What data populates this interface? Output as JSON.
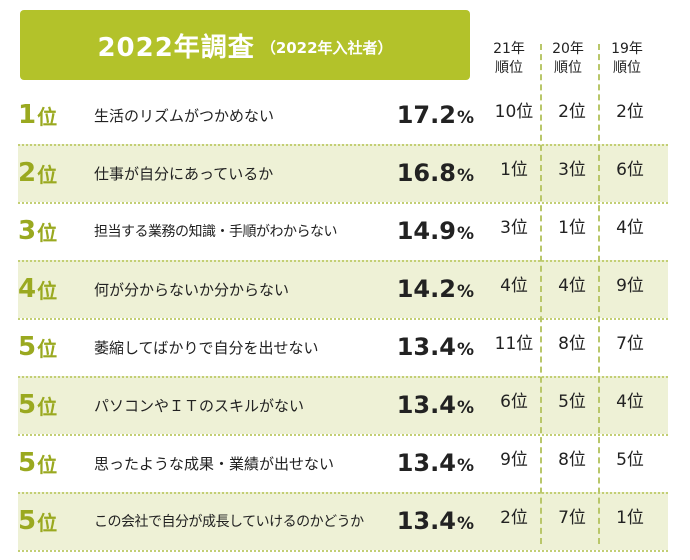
{
  "header": {
    "title": "2022年調査",
    "subtitle": "（2022年入社者）"
  },
  "columns": [
    {
      "line1": "21年",
      "line2": "順位"
    },
    {
      "line1": "20年",
      "line2": "順位"
    },
    {
      "line1": "19年",
      "line2": "順位"
    }
  ],
  "rank_unit": "位",
  "percent_sign": "%",
  "rows": [
    {
      "rank": "1",
      "reason": "生活のリズムがつかめない",
      "percent": "17.2",
      "r21": "10位",
      "r20": "2位",
      "r19": "2位"
    },
    {
      "rank": "2",
      "reason": "仕事が自分にあっているか",
      "percent": "16.8",
      "r21": "1位",
      "r20": "3位",
      "r19": "6位"
    },
    {
      "rank": "3",
      "reason": "担当する業務の知識・手順がわからない",
      "percent": "14.9",
      "r21": "3位",
      "r20": "1位",
      "r19": "4位"
    },
    {
      "rank": "4",
      "reason": "何が分からないか分からない",
      "percent": "14.2",
      "r21": "4位",
      "r20": "4位",
      "r19": "9位"
    },
    {
      "rank": "5",
      "reason": "萎縮してばかりで自分を出せない",
      "percent": "13.4",
      "r21": "11位",
      "r20": "8位",
      "r19": "7位"
    },
    {
      "rank": "5",
      "reason": "パソコンやＩＴのスキルがない",
      "percent": "13.4",
      "r21": "6位",
      "r20": "5位",
      "r19": "4位"
    },
    {
      "rank": "5",
      "reason": "思ったような成果・業績が出せない",
      "percent": "13.4",
      "r21": "9位",
      "r20": "8位",
      "r19": "5位"
    },
    {
      "rank": "5",
      "reason": "この会社で自分が成長していけるのかどうか",
      "percent": "13.4",
      "r21": "2位",
      "r20": "7位",
      "r19": "1位"
    }
  ]
}
